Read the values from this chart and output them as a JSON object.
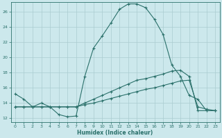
{
  "xlabel": "Humidex (Indice chaleur)",
  "bg_color": "#cce8ec",
  "grid_color": "#aaccd0",
  "line_color": "#2a706a",
  "xlim": [
    -0.5,
    23.5
  ],
  "ylim": [
    11.5,
    27.2
  ],
  "xticks": [
    0,
    1,
    2,
    3,
    4,
    5,
    6,
    7,
    8,
    9,
    10,
    11,
    12,
    13,
    14,
    15,
    16,
    17,
    18,
    19,
    20,
    21,
    22,
    23
  ],
  "yticks": [
    12,
    14,
    16,
    18,
    20,
    22,
    24,
    26
  ],
  "curve1_x": [
    0,
    1,
    2,
    3,
    4,
    5,
    6,
    7,
    8,
    9,
    10,
    11,
    12,
    13,
    14,
    15,
    16,
    17,
    18,
    19,
    20,
    21,
    22,
    23
  ],
  "curve1_y": [
    15.2,
    14.5,
    13.5,
    14.0,
    13.5,
    12.5,
    12.2,
    12.3,
    17.5,
    21.2,
    22.8,
    24.5,
    26.3,
    27.0,
    27.0,
    26.5,
    25.0,
    23.0,
    19.0,
    17.5,
    15.0,
    14.5,
    13.0,
    13.0
  ],
  "curve2_x": [
    0,
    1,
    2,
    3,
    4,
    5,
    6,
    7,
    8,
    9,
    10,
    11,
    12,
    13,
    14,
    15,
    16,
    17,
    18,
    19,
    20,
    21,
    22,
    23
  ],
  "curve2_y": [
    13.5,
    13.5,
    13.5,
    13.5,
    13.5,
    13.5,
    13.5,
    13.5,
    14.0,
    14.5,
    15.0,
    15.5,
    16.0,
    16.5,
    17.0,
    17.2,
    17.5,
    17.8,
    18.2,
    18.3,
    17.5,
    13.0,
    13.0,
    13.0
  ],
  "curve3_x": [
    0,
    1,
    2,
    3,
    4,
    5,
    6,
    7,
    8,
    9,
    10,
    11,
    12,
    13,
    14,
    15,
    16,
    17,
    18,
    19,
    20,
    21,
    22,
    23
  ],
  "curve3_y": [
    13.5,
    13.5,
    13.5,
    13.5,
    13.5,
    13.5,
    13.5,
    13.5,
    13.8,
    14.0,
    14.3,
    14.6,
    14.9,
    15.2,
    15.5,
    15.8,
    16.0,
    16.3,
    16.6,
    16.9,
    17.0,
    13.5,
    13.2,
    13.0
  ]
}
